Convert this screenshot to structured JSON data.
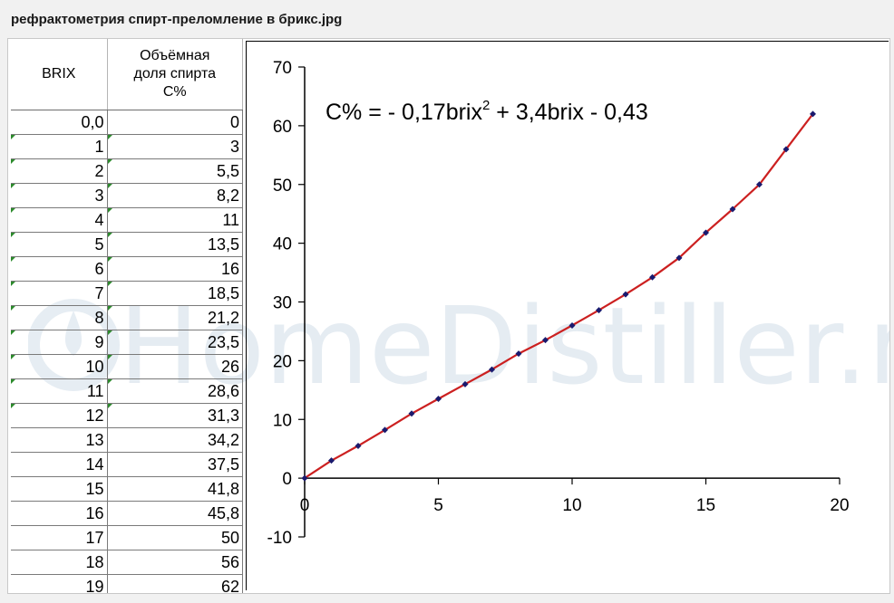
{
  "file_title": "рефрактометрия спирт-преломление в брикс.jpg",
  "watermark_text": "HomeDistiller.ru",
  "table": {
    "col1_header": "BRIX",
    "col2_header_lines": [
      "Объёмная",
      "доля спирта",
      "C%"
    ],
    "rows": [
      [
        "0,0",
        "0"
      ],
      [
        "1",
        "3"
      ],
      [
        "2",
        "5,5"
      ],
      [
        "3",
        "8,2"
      ],
      [
        "4",
        "11"
      ],
      [
        "5",
        "13,5"
      ],
      [
        "6",
        "16"
      ],
      [
        "7",
        "18,5"
      ],
      [
        "8",
        "21,2"
      ],
      [
        "9",
        "23,5"
      ],
      [
        "10",
        "26"
      ],
      [
        "11",
        "28,6"
      ],
      [
        "12",
        "31,3"
      ],
      [
        "13",
        "34,2"
      ],
      [
        "14",
        "37,5"
      ],
      [
        "15",
        "41,8"
      ],
      [
        "16",
        "45,8"
      ],
      [
        "17",
        "50"
      ],
      [
        "18",
        "56"
      ],
      [
        "19",
        "62"
      ]
    ]
  },
  "chart_data": {
    "type": "scatter",
    "equation": {
      "lead": "C% =  - 0,17brix",
      "exponent": "2",
      "tail": " + 3,4brix - 0,43"
    },
    "x": [
      0,
      1,
      2,
      3,
      4,
      5,
      6,
      7,
      8,
      9,
      10,
      11,
      12,
      13,
      14,
      15,
      16,
      17,
      18,
      19
    ],
    "y": [
      0,
      3,
      5.5,
      8.2,
      11,
      13.5,
      16,
      18.5,
      21.2,
      23.5,
      26,
      28.6,
      31.3,
      34.2,
      37.5,
      41.8,
      45.8,
      50,
      56,
      62
    ],
    "xlim": [
      0,
      20
    ],
    "ylim": [
      -10,
      70
    ],
    "xticks": [
      "0",
      "5",
      "10",
      "15",
      "20"
    ],
    "yticks": [
      "-10",
      "0",
      "10",
      "20",
      "30",
      "40",
      "50",
      "60",
      "70"
    ],
    "marker_color": "#1a1a6e",
    "trend_color": "#cc2020",
    "grid": false,
    "legend": "none"
  }
}
